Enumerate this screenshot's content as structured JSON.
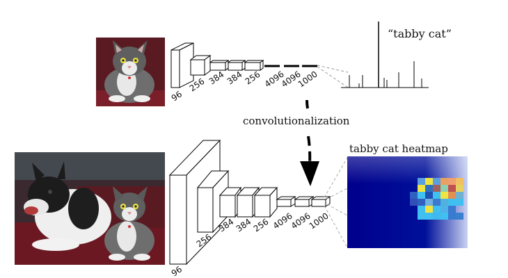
{
  "top_network": {
    "input_image": "cat-photo",
    "layer_labels": [
      "96",
      "256",
      "384",
      "384",
      "256",
      "4096",
      "4096",
      "1000"
    ],
    "output_label": "“tabby cat”"
  },
  "transition": {
    "label": "convolutionalization"
  },
  "bottom_network": {
    "input_image": "dog-and-cat-photo",
    "layer_labels": [
      "96",
      "256",
      "384",
      "384",
      "256",
      "4096",
      "4096",
      "1000"
    ],
    "output_label": "tabby cat heatmap"
  },
  "colors": {
    "heatmap_background": "#00008b",
    "heatmap_hot": "#c0504d",
    "heatmap_warm": "#f0e442",
    "heatmap_cool": "#40c0f0"
  }
}
